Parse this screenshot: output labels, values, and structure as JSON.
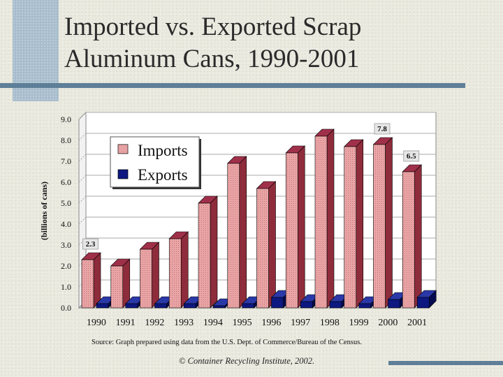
{
  "slide": {
    "title_line1": "Imported vs. Exported Scrap",
    "title_line2": "Aluminum Cans, 1990-2001",
    "source_note": "Source: Graph prepared using data from the U.S. Dept. of Commerce/Bureau of the Census.",
    "credit": "© Container Recycling Institute, 2002."
  },
  "chart_data": {
    "type": "bar",
    "title": "Imported vs. Exported Scrap Aluminum Cans, 1990-2001",
    "xlabel": "",
    "ylabel": "(billions of cans)",
    "ylim": [
      0,
      9
    ],
    "yticks": [
      "0.0",
      "1.0",
      "2.0",
      "3.0",
      "4.0",
      "5.0",
      "6.0",
      "7.0",
      "8.0",
      "9.0"
    ],
    "categories": [
      "1990",
      "1991",
      "1992",
      "1993",
      "1994",
      "1995",
      "1996",
      "1997",
      "1998",
      "1999",
      "2000",
      "2001"
    ],
    "series": [
      {
        "name": "Imports",
        "values": [
          2.3,
          2.0,
          2.8,
          3.3,
          5.0,
          6.9,
          5.7,
          7.4,
          8.2,
          7.7,
          7.8,
          6.5
        ]
      },
      {
        "name": "Exports",
        "values": [
          0.2,
          0.2,
          0.2,
          0.2,
          0.1,
          0.2,
          0.5,
          0.3,
          0.3,
          0.2,
          0.4,
          0.5
        ]
      }
    ],
    "data_labels": [
      {
        "series": "Imports",
        "category": "1990",
        "text": "2.3"
      },
      {
        "series": "Imports",
        "category": "2000",
        "text": "7.8"
      },
      {
        "series": "Imports",
        "category": "2001",
        "text": "6.5"
      }
    ],
    "legend_position": "top-left",
    "grid": true,
    "colors": {
      "imports_front": "#e9a7a7",
      "imports_side": "#8e2c3c",
      "imports_top": "#a0304a",
      "exports_front": "#0d1880",
      "exports_side": "#060c4e",
      "exports_top": "#2a38a8",
      "plot_bg": "#ffffff",
      "grid": "#a8a8a8"
    }
  }
}
